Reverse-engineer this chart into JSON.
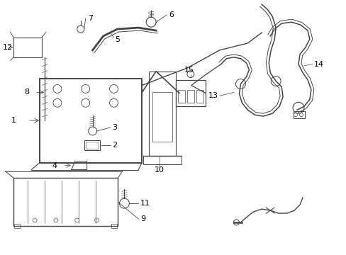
{
  "background_color": "#ffffff",
  "line_color": "#444444",
  "label_color": "#000000",
  "figsize": [
    4.89,
    3.6
  ],
  "dpi": 100
}
